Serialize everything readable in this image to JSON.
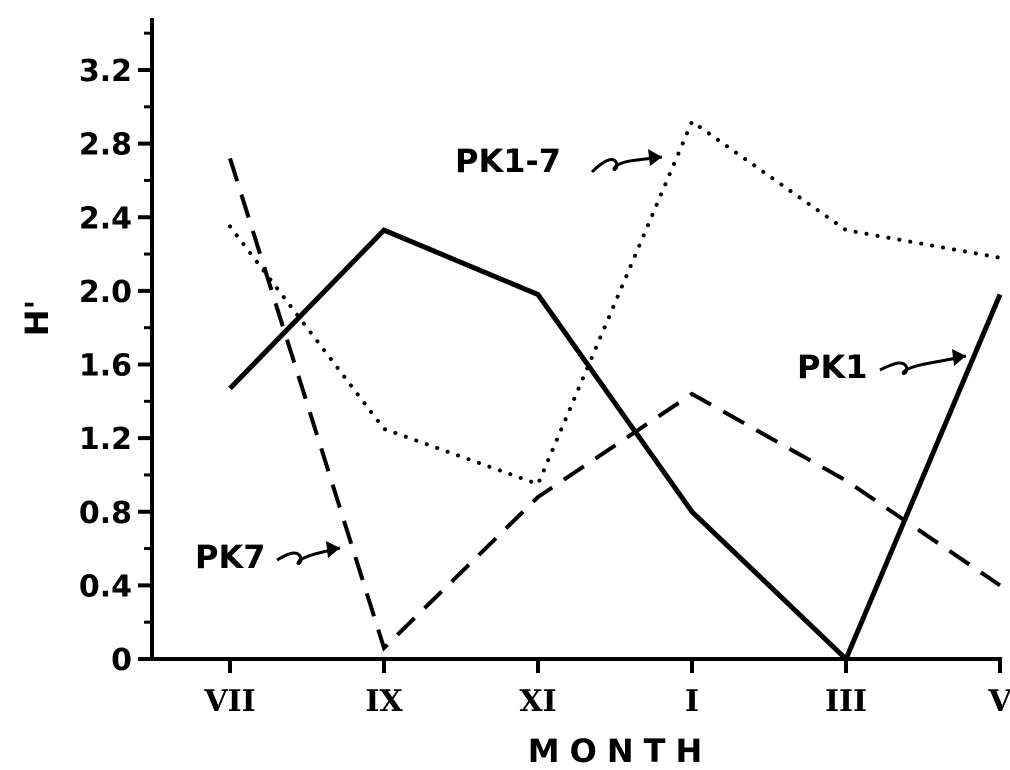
{
  "chart_data": {
    "type": "line",
    "xlabel": "MONTH",
    "ylabel": "H'",
    "categories": [
      "VII",
      "IX",
      "XI",
      "I",
      "III",
      "V"
    ],
    "yticks": [
      "0",
      "0.4",
      "0.8",
      "1.2",
      "1.6",
      "2.0",
      "2.4",
      "2.8",
      "3.2"
    ],
    "ylim": [
      0,
      3.4
    ],
    "grid": false,
    "series": [
      {
        "name": "PK1",
        "style": "solid",
        "values": [
          1.47,
          2.33,
          1.98,
          0.8,
          0.0,
          1.98
        ]
      },
      {
        "name": "PK7",
        "style": "dashed",
        "values": [
          2.72,
          0.06,
          0.88,
          1.44,
          0.97,
          0.4
        ]
      },
      {
        "name": "PK1-7",
        "style": "dotted",
        "values": [
          2.35,
          1.25,
          0.95,
          2.92,
          2.33,
          2.18
        ]
      }
    ],
    "annotations": [
      {
        "text": "PK1-7",
        "series": "PK1-7"
      },
      {
        "text": "PK1",
        "series": "PK1"
      },
      {
        "text": "PK7",
        "series": "PK7"
      }
    ]
  }
}
